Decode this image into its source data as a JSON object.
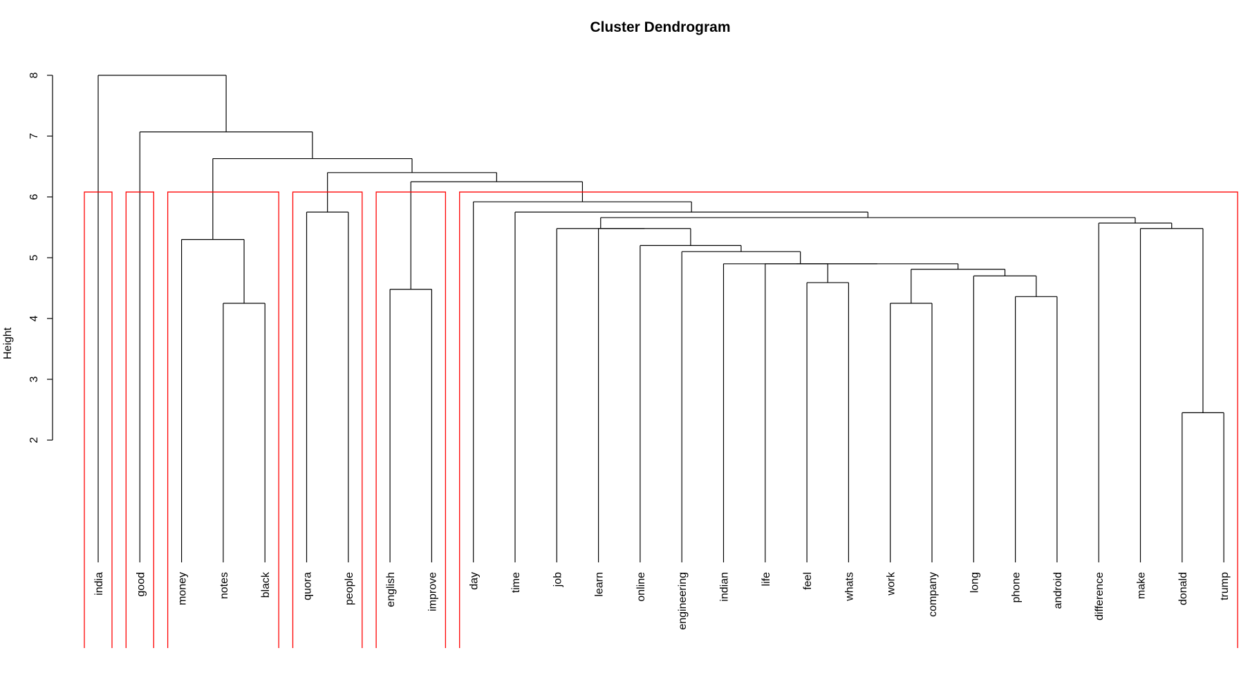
{
  "chart_data": {
    "type": "dendrogram",
    "title": "Cluster Dendrogram",
    "xlabel": "",
    "ylabel": "Height",
    "yticks": [
      2,
      3,
      4,
      5,
      6,
      7,
      8
    ],
    "leaves": [
      "india",
      "good",
      "money",
      "notes",
      "black",
      "quora",
      "people",
      "english",
      "improve",
      "day",
      "time",
      "job",
      "learn",
      "online",
      "engineering",
      "indian",
      "life",
      "feel",
      "whats",
      "work",
      "company",
      "long",
      "phone",
      "android",
      "difference",
      "make",
      "donald",
      "trump"
    ],
    "merges": [
      {
        "a": "donald",
        "b": "trump",
        "height": 2.45
      },
      {
        "a": "notes",
        "b": "black",
        "height": 4.25
      },
      {
        "a": "work",
        "b": "company",
        "height": 4.25
      },
      {
        "a": "phone",
        "b": "android",
        "height": 4.36
      },
      {
        "a": "english",
        "b": "improve",
        "height": 4.48
      },
      {
        "a": "feel",
        "b": "whats",
        "height": 4.59
      },
      {
        "a": "long",
        "b": [
          "phone",
          "android"
        ],
        "height": 4.7
      },
      {
        "a": [
          "work",
          "company"
        ],
        "b": [
          "long",
          "phone",
          "android"
        ],
        "height": 4.81
      },
      {
        "a": "life",
        "b": [
          "feel",
          "whats"
        ],
        "height": 4.9
      },
      {
        "a": [
          "life",
          "feel",
          "whats"
        ],
        "b": [
          "work",
          "company",
          "long",
          "phone",
          "android"
        ],
        "height": 4.9
      },
      {
        "a": "indian",
        "b": [
          "life",
          "feel",
          "whats",
          "work",
          "company",
          "long",
          "phone",
          "android"
        ],
        "height": 4.9
      },
      {
        "a": "engineering",
        "b": [
          "indian",
          "life",
          "feel",
          "whats",
          "work",
          "company",
          "long",
          "phone",
          "android"
        ],
        "height": 5.1
      },
      {
        "a": "online",
        "b": [
          "engineering",
          "indian",
          "life",
          "feel",
          "whats",
          "work",
          "company",
          "long",
          "phone",
          "android"
        ],
        "height": 5.2
      },
      {
        "a": "money",
        "b": [
          "notes",
          "black"
        ],
        "height": 5.3
      },
      {
        "a": "learn",
        "b": [
          "online",
          "engineering",
          "indian",
          "life",
          "feel",
          "whats",
          "work",
          "company",
          "long",
          "phone",
          "android"
        ],
        "height": 5.48
      },
      {
        "a": "make",
        "b": [
          "donald",
          "trump"
        ],
        "height": 5.48
      },
      {
        "a": "difference",
        "b": [
          "make",
          "donald",
          "trump"
        ],
        "height": 5.57
      },
      {
        "a": "job-group",
        "b": "difference-group",
        "height": 5.66
      },
      {
        "a": "time",
        "b": "job-subtree",
        "height": 5.75
      },
      {
        "a": "quora",
        "b": "people",
        "height": 5.75
      },
      {
        "a": "day",
        "b": "time-subtree",
        "height": 5.92
      },
      {
        "a": "english-improve",
        "b": "day-subtree",
        "height": 6.25
      },
      {
        "a": "quora-people",
        "b": "english-day-subtree",
        "height": 6.4
      },
      {
        "a": "money-subtree",
        "b": "quora-subtree",
        "height": 6.63
      },
      {
        "a": "good",
        "b": "money-quora-subtree",
        "height": 7.07
      },
      {
        "a": "india",
        "b": "rest",
        "height": 8.0
      }
    ],
    "tree": {
      "h": 8.0,
      "c": [
        {
          "leaf": "india"
        },
        {
          "h": 7.07,
          "c": [
            {
              "leaf": "good"
            },
            {
              "h": 6.63,
              "c": [
                {
                  "h": 5.3,
                  "c": [
                    {
                      "leaf": "money"
                    },
                    {
                      "h": 4.25,
                      "c": [
                        {
                          "leaf": "notes"
                        },
                        {
                          "leaf": "black"
                        }
                      ]
                    }
                  ]
                },
                {
                  "h": 6.4,
                  "c": [
                    {
                      "h": 5.75,
                      "c": [
                        {
                          "leaf": "quora"
                        },
                        {
                          "leaf": "people"
                        }
                      ]
                    },
                    {
                      "h": 6.25,
                      "c": [
                        {
                          "h": 4.48,
                          "c": [
                            {
                              "leaf": "english"
                            },
                            {
                              "leaf": "improve"
                            }
                          ]
                        },
                        {
                          "h": 5.92,
                          "c": [
                            {
                              "leaf": "day"
                            },
                            {
                              "h": 5.75,
                              "c": [
                                {
                                  "leaf": "time"
                                },
                                {
                                  "h": 5.66,
                                  "c": [
                                    {
                                      "h": 5.48,
                                      "c": [
                                        {
                                          "leaf": "job"
                                        },
                                        {
                                          "h": 5.48,
                                          "c": [
                                            {
                                              "leaf": "learn"
                                            },
                                            {
                                              "h": 5.2,
                                              "c": [
                                                {
                                                  "leaf": "online"
                                                },
                                                {
                                                  "h": 5.1,
                                                  "c": [
                                                    {
                                                      "leaf": "engineering"
                                                    },
                                                    {
                                                      "h": 4.9,
                                                      "c": [
                                                        {
                                                          "leaf": "indian"
                                                        },
                                                        {
                                                          "h": 4.9,
                                                          "c": [
                                                            {
                                                              "h": 4.9,
                                                              "c": [
                                                                {
                                                                  "leaf": "life"
                                                                },
                                                                {
                                                                  "h": 4.59,
                                                                  "c": [
                                                                    {
                                                                      "leaf": "feel"
                                                                    },
                                                                    {
                                                                      "leaf": "whats"
                                                                    }
                                                                  ]
                                                                }
                                                              ]
                                                            },
                                                            {
                                                              "h": 4.81,
                                                              "c": [
                                                                {
                                                                  "h": 4.25,
                                                                  "c": [
                                                                    {
                                                                      "leaf": "work"
                                                                    },
                                                                    {
                                                                      "leaf": "company"
                                                                    }
                                                                  ]
                                                                },
                                                                {
                                                                  "h": 4.7,
                                                                  "c": [
                                                                    {
                                                                      "leaf": "long"
                                                                    },
                                                                    {
                                                                      "h": 4.36,
                                                                      "c": [
                                                                        {
                                                                          "leaf": "phone"
                                                                        },
                                                                        {
                                                                          "leaf": "android"
                                                                        }
                                                                      ]
                                                                    }
                                                                  ]
                                                                }
                                                              ]
                                                            }
                                                          ]
                                                        }
                                                      ]
                                                    }
                                                  ]
                                                }
                                              ]
                                            }
                                          ]
                                        }
                                      ]
                                    },
                                    {
                                      "h": 5.57,
                                      "c": [
                                        {
                                          "leaf": "difference"
                                        },
                                        {
                                          "h": 5.48,
                                          "c": [
                                            {
                                              "leaf": "make"
                                            },
                                            {
                                              "h": 2.45,
                                              "c": [
                                                {
                                                  "leaf": "donald"
                                                },
                                                {
                                                  "leaf": "trump"
                                                }
                                              ]
                                            }
                                          ]
                                        }
                                      ]
                                    }
                                  ]
                                }
                              ]
                            }
                          ]
                        }
                      ]
                    }
                  ]
                }
              ]
            }
          ]
        }
      ]
    },
    "cluster_cut_height": 6.08,
    "clusters": [
      [
        "india"
      ],
      [
        "good"
      ],
      [
        "money",
        "notes",
        "black"
      ],
      [
        "quora",
        "people"
      ],
      [
        "english",
        "improve"
      ],
      [
        "day",
        "time",
        "job",
        "learn",
        "online",
        "engineering",
        "indian",
        "life",
        "feel",
        "whats",
        "work",
        "company",
        "long",
        "phone",
        "android",
        "difference",
        "make",
        "donald",
        "trump"
      ]
    ],
    "branch_color": "#000000",
    "cluster_color": "#ff0000"
  }
}
